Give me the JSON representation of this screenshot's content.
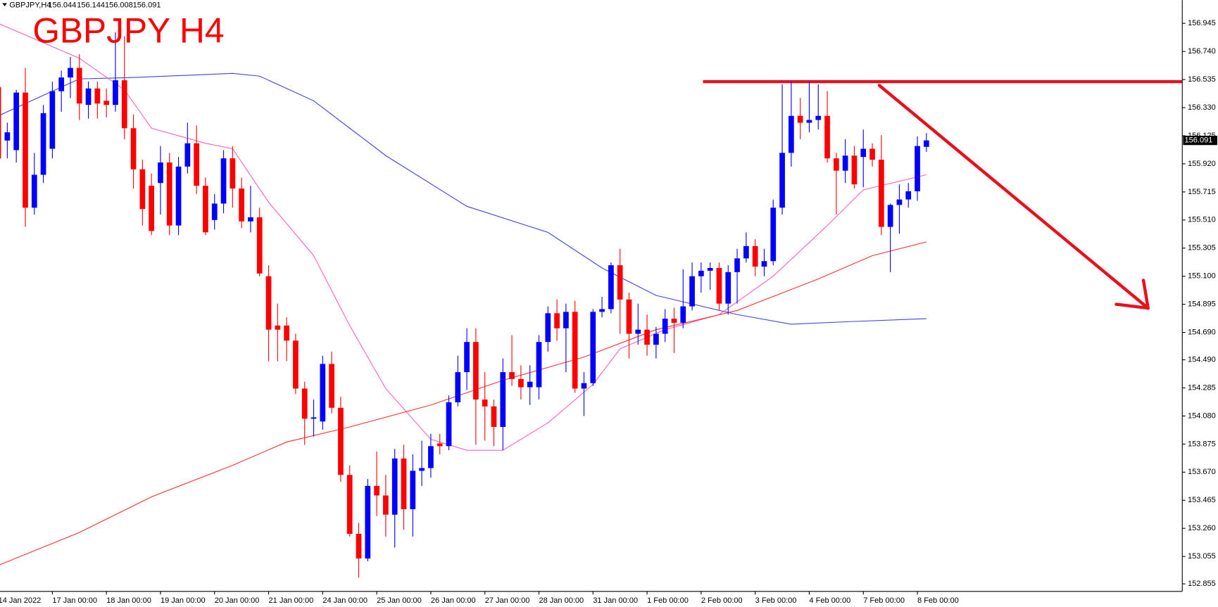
{
  "chart_data": {
    "type": "candlestick",
    "symbol": "GBPJPY,H4",
    "title": "GBPJPY H4",
    "up_color": "#0000ff",
    "down_color": "#ff0000",
    "categories": [
      "14 Jan 2022",
      null,
      null,
      null,
      null,
      null,
      "17 Jan 00:00",
      null,
      null,
      null,
      null,
      null,
      "18 Jan 00:00",
      null,
      null,
      null,
      null,
      null,
      "19 Jan 00:00",
      null,
      null,
      null,
      null,
      null,
      "20 Jan 00:00",
      null,
      null,
      null,
      null,
      null,
      "21 Jan 00:00",
      null,
      null,
      null,
      null,
      null,
      "24 Jan 00:00",
      null,
      null,
      null,
      null,
      null,
      "25 Jan 00:00",
      null,
      null,
      null,
      null,
      null,
      "26 Jan 00:00",
      null,
      null,
      null,
      null,
      null,
      "27 Jan 00:00",
      null,
      null,
      null,
      null,
      null,
      "28 Jan 00:00",
      null,
      null,
      null,
      null,
      null,
      "31 Jan 00:00",
      null,
      null,
      null,
      null,
      null,
      "1 Feb 00:00",
      null,
      null,
      null,
      null,
      null,
      "2 Feb 00:00",
      null,
      null,
      null,
      null,
      null,
      "3 Feb 00:00",
      null,
      null,
      null,
      null,
      null,
      "4 Feb 00:00",
      null,
      null,
      null,
      null,
      null,
      "7 Feb 00:00",
      null,
      null,
      null,
      null,
      null,
      "8 Feb 00:00",
      null
    ],
    "open": [
      156.48,
      156.09,
      156.02,
      156.44,
      155.6,
      155.84,
      156.03,
      156.45,
      156.55,
      156.62,
      156.35,
      156.47,
      156.38,
      156.35,
      156.53,
      156.18,
      155.88,
      155.76,
      155.78,
      155.93,
      155.47,
      155.9,
      156.07,
      155.76,
      155.51,
      155.63,
      155.96,
      155.74,
      155.5,
      155.53,
      155.1,
      154.74,
      154.74,
      154.63,
      154.28,
      154.06,
      154.04,
      154.46,
      154.14,
      153.65,
      153.22,
      153.04,
      153.57,
      153.5,
      153.36,
      153.77,
      153.4,
      153.68,
      153.7,
      153.88,
      153.86,
      154.18,
      154.4,
      154.62,
      154.2,
      154.15,
      154.0,
      154.4,
      154.35,
      154.29,
      154.29,
      154.62,
      154.83,
      154.72,
      154.84,
      154.28,
      154.32,
      154.84,
      154.86,
      155.18,
      154.93,
      154.68,
      154.71,
      154.6,
      154.68,
      154.79,
      154.76,
      154.88,
      155.1,
      155.14,
      155.16,
      154.9,
      155.13,
      155.23,
      155.32,
      155.17,
      155.21,
      155.6,
      156.0,
      156.27,
      156.22,
      156.24,
      156.27,
      155.96,
      155.87,
      155.98,
      155.97,
      156.03,
      155.95,
      155.46,
      155.62,
      155.66,
      155.72,
      156.044
    ],
    "high": [
      156.55,
      156.22,
      156.46,
      156.62,
      156.0,
      156.35,
      156.52,
      156.6,
      156.7,
      156.72,
      156.52,
      156.52,
      156.47,
      156.88,
      156.85,
      156.28,
      155.95,
      155.85,
      156.05,
      156.0,
      155.97,
      156.22,
      156.2,
      155.82,
      155.7,
      156.02,
      156.05,
      155.82,
      155.76,
      155.6,
      155.18,
      154.9,
      154.8,
      154.68,
      154.33,
      154.2,
      154.52,
      154.55,
      154.22,
      153.72,
      153.3,
      153.62,
      153.82,
      153.65,
      153.84,
      153.87,
      153.8,
      153.9,
      153.95,
      153.95,
      154.23,
      154.52,
      154.72,
      154.72,
      154.4,
      154.2,
      154.5,
      154.67,
      154.45,
      154.45,
      154.67,
      154.88,
      154.93,
      154.9,
      154.92,
      154.4,
      154.86,
      154.95,
      155.2,
      155.3,
      154.98,
      154.9,
      154.82,
      154.73,
      154.86,
      154.87,
      155.15,
      155.2,
      155.2,
      155.2,
      155.2,
      155.18,
      155.3,
      155.42,
      155.37,
      155.3,
      155.66,
      156.5,
      156.52,
      156.4,
      156.52,
      156.5,
      156.45,
      156.0,
      156.1,
      156.05,
      156.17,
      156.07,
      156.13,
      155.63,
      155.77,
      155.78,
      156.12,
      156.144
    ],
    "low": [
      155.9,
      155.96,
      155.93,
      155.46,
      155.55,
      155.78,
      155.96,
      156.3,
      156.4,
      156.24,
      156.25,
      156.25,
      156.26,
      156.3,
      156.1,
      155.74,
      155.47,
      155.4,
      155.55,
      155.4,
      155.4,
      155.85,
      155.7,
      155.4,
      155.44,
      155.56,
      155.6,
      155.45,
      155.42,
      155.1,
      154.48,
      154.48,
      154.48,
      154.24,
      153.87,
      153.93,
      153.98,
      154.1,
      153.6,
      153.2,
      152.9,
      153.02,
      153.35,
      153.2,
      153.12,
      153.25,
      153.2,
      153.57,
      153.63,
      153.8,
      153.83,
      154.15,
      154.27,
      153.87,
      153.9,
      153.86,
      153.83,
      154.3,
      154.2,
      154.16,
      154.2,
      154.55,
      154.63,
      154.4,
      154.25,
      154.08,
      154.3,
      154.8,
      154.83,
      154.68,
      154.5,
      154.6,
      154.52,
      154.5,
      154.62,
      154.54,
      154.72,
      154.85,
      154.98,
      155.0,
      154.85,
      154.82,
      154.9,
      155.2,
      155.1,
      155.1,
      155.18,
      155.55,
      155.9,
      156.1,
      156.15,
      156.17,
      155.93,
      155.55,
      155.78,
      155.74,
      155.75,
      155.9,
      155.4,
      155.13,
      155.41,
      155.6,
      155.65,
      156.008
    ],
    "close": [
      155.96,
      156.15,
      156.44,
      155.6,
      155.84,
      156.29,
      156.45,
      156.55,
      156.62,
      156.36,
      156.47,
      156.36,
      156.35,
      156.53,
      156.18,
      155.88,
      155.59,
      155.43,
      155.93,
      155.47,
      155.9,
      156.07,
      155.76,
      155.42,
      155.63,
      155.96,
      155.74,
      155.5,
      155.53,
      155.12,
      154.71,
      154.71,
      154.63,
      154.28,
      154.06,
      154.07,
      154.46,
      154.14,
      153.65,
      153.22,
      153.04,
      153.57,
      153.5,
      153.36,
      153.77,
      153.4,
      153.68,
      153.7,
      153.86,
      153.86,
      154.18,
      154.4,
      154.62,
      154.2,
      154.15,
      154.0,
      154.4,
      154.35,
      154.29,
      154.33,
      154.62,
      154.83,
      154.72,
      154.84,
      154.28,
      154.32,
      154.84,
      154.86,
      155.18,
      154.93,
      154.68,
      154.71,
      154.6,
      154.68,
      154.79,
      154.76,
      154.88,
      155.1,
      155.14,
      155.16,
      154.9,
      155.13,
      155.23,
      155.32,
      155.17,
      155.21,
      155.6,
      156.0,
      156.27,
      156.22,
      156.24,
      156.27,
      155.96,
      155.87,
      155.98,
      155.77,
      156.03,
      155.95,
      155.46,
      155.62,
      155.66,
      155.72,
      156.05,
      156.091
    ],
    "indicators": [
      {
        "color": "#4040ff",
        "x": [
          0,
          9,
          15,
          26,
          29,
          35,
          43,
          52,
          61,
          67,
          73,
          82,
          88,
          95,
          103
        ],
        "values": [
          156.27,
          156.54,
          156.55,
          156.58,
          156.56,
          156.38,
          155.98,
          155.61,
          155.42,
          155.16,
          154.96,
          154.82,
          154.75,
          154.77,
          154.79
        ]
      },
      {
        "color": "#ff5fc0",
        "x": [
          0,
          9,
          14,
          17,
          23,
          26,
          30,
          35,
          39,
          43,
          48,
          52,
          56,
          61,
          66,
          69,
          74,
          80,
          86,
          92,
          96,
          103
        ],
        "values": [
          156.945,
          156.69,
          156.46,
          156.18,
          156.07,
          156.03,
          155.64,
          155.25,
          154.74,
          154.28,
          153.91,
          153.83,
          153.83,
          154.03,
          154.31,
          154.57,
          154.71,
          154.82,
          155.1,
          155.47,
          155.73,
          155.84
        ]
      },
      {
        "color": "#ff3030",
        "x": [
          0,
          9,
          17,
          26,
          32,
          39,
          48,
          56,
          65,
          73,
          82,
          91,
          97,
          103
        ],
        "values": [
          152.99,
          153.23,
          153.49,
          153.72,
          153.89,
          154.0,
          154.16,
          154.34,
          154.51,
          154.71,
          154.85,
          155.08,
          155.25,
          155.35
        ]
      }
    ],
    "level": 156.52,
    "level_color": "#e8101a",
    "ylim": [
      152.8,
      157.115
    ],
    "yticks": [
      156.945,
      {
        "value": 156.74,
        "label": "156.740"
      },
      156.535,
      {
        "value": 156.33,
        "label": "156.330"
      },
      156.125,
      {
        "value": 155.92,
        "label": "155.920"
      },
      155.715,
      {
        "value": 155.51,
        "label": "155.510"
      },
      155.305,
      {
        "value": 155.1,
        "label": "155.100"
      },
      154.895,
      {
        "value": 154.69,
        "label": "154.690"
      },
      {
        "value": 154.49,
        "label": "154.490"
      },
      154.285,
      {
        "value": 154.08,
        "label": "154.080"
      },
      153.875,
      {
        "value": 153.67,
        "label": "153.670"
      },
      153.465,
      {
        "value": 153.26,
        "label": "153.260"
      },
      153.055,
      152.855
    ],
    "grid": false
  }
}
